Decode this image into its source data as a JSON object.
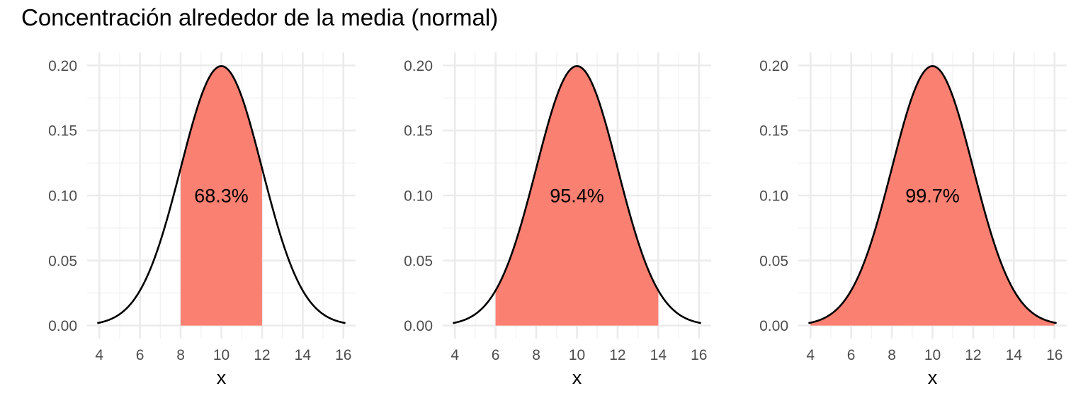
{
  "title": "Concentración alrededor de la media (normal)",
  "colors": {
    "fill": "#fa8072",
    "curve": "#000000",
    "grid_major": "#ebebeb",
    "grid_minor": "#f3f3f3",
    "tick_text": "#4d4d4d"
  },
  "chart_data": [
    {
      "type": "area",
      "distribution": "normal",
      "mean": 10,
      "sd": 2,
      "shaded_range": [
        8,
        12
      ],
      "annotation": "68.3%",
      "annotation_pos": {
        "x": 10,
        "y": 0.1
      },
      "xlabel": "x",
      "ylabel": "",
      "xlim": [
        4,
        16
      ],
      "ylim": [
        0,
        0.2
      ],
      "x_ticks": [
        "4",
        "6",
        "8",
        "10",
        "12",
        "14",
        "16"
      ],
      "y_ticks": [
        "0.00",
        "0.05",
        "0.10",
        "0.15",
        "0.20"
      ],
      "grid": true
    },
    {
      "type": "area",
      "distribution": "normal",
      "mean": 10,
      "sd": 2,
      "shaded_range": [
        6,
        14
      ],
      "annotation": "95.4%",
      "annotation_pos": {
        "x": 10,
        "y": 0.1
      },
      "xlabel": "x",
      "ylabel": "",
      "xlim": [
        4,
        16
      ],
      "ylim": [
        0,
        0.2
      ],
      "x_ticks": [
        "4",
        "6",
        "8",
        "10",
        "12",
        "14",
        "16"
      ],
      "y_ticks": [
        "0.00",
        "0.05",
        "0.10",
        "0.15",
        "0.20"
      ],
      "grid": true
    },
    {
      "type": "area",
      "distribution": "normal",
      "mean": 10,
      "sd": 2,
      "shaded_range": [
        4,
        16
      ],
      "annotation": "99.7%",
      "annotation_pos": {
        "x": 10,
        "y": 0.1
      },
      "xlabel": "x",
      "ylabel": "",
      "xlim": [
        4,
        16
      ],
      "ylim": [
        0,
        0.2
      ],
      "x_ticks": [
        "4",
        "6",
        "8",
        "10",
        "12",
        "14",
        "16"
      ],
      "y_ticks": [
        "0.00",
        "0.05",
        "0.10",
        "0.15",
        "0.20"
      ],
      "grid": true
    }
  ]
}
